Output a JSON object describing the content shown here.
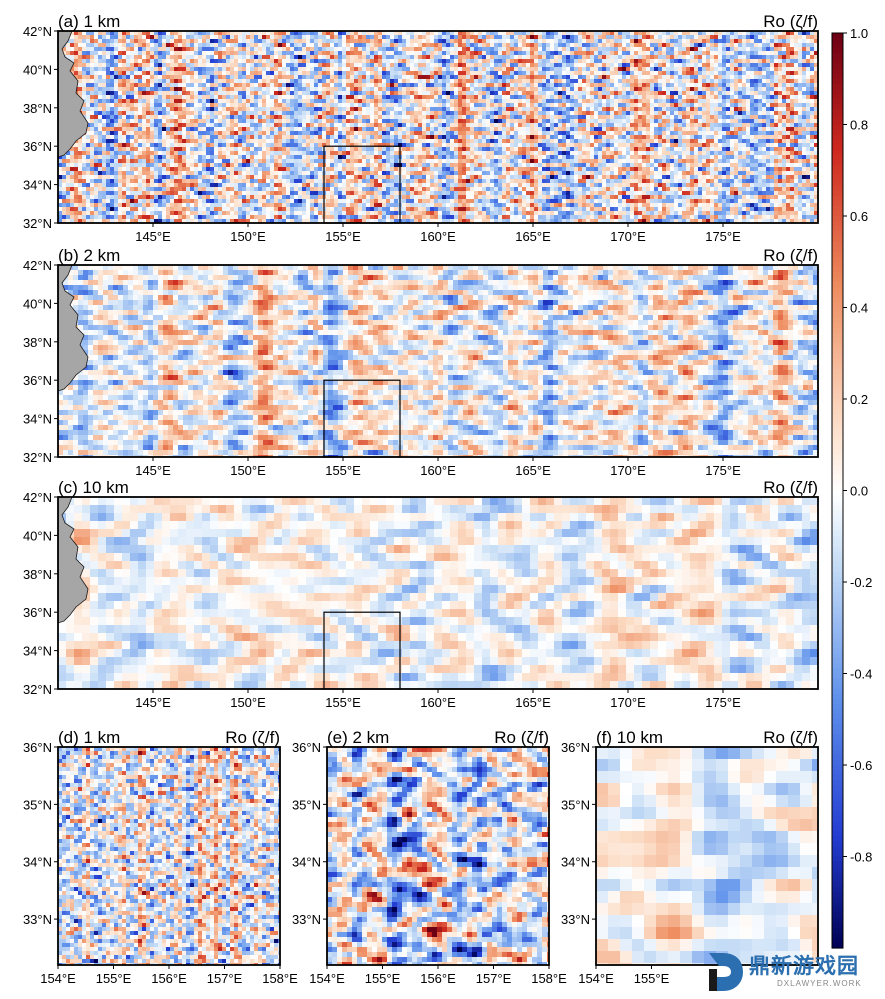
{
  "chart_data": {
    "type": "heatmap",
    "colorbar": {
      "ticks": [
        "1.0",
        "0.8",
        "0.6",
        "0.4",
        "0.2",
        "0.0",
        "-0.2",
        "-0.4",
        "-0.6",
        "-0.8"
      ],
      "tick_values": [
        1.0,
        0.8,
        0.6,
        0.4,
        0.2,
        0.0,
        -0.2,
        -0.4,
        -0.6,
        -0.8
      ],
      "range": [
        -1.0,
        1.0
      ],
      "colormap": "seismic"
    },
    "panels": [
      {
        "id": "a",
        "title": "(a) 1 km",
        "label": "Ro (ζ/f)",
        "resolution_km": 1,
        "amp": 0.95,
        "highlight_box": [
          154,
          158,
          32,
          36
        ],
        "xlim": [
          140,
          180
        ],
        "ylim": [
          32,
          42
        ],
        "xticks": [
          145,
          150,
          155,
          160,
          165,
          170,
          175
        ],
        "yticks": [
          32,
          34,
          36,
          38,
          40,
          42
        ],
        "xticklabels": [
          "145°E",
          "150°E",
          "155°E",
          "160°E",
          "165°E",
          "170°E",
          "175°E"
        ],
        "yticklabels": [
          "32°N",
          "34°N",
          "36°N",
          "38°N",
          "40°N",
          "42°N"
        ]
      },
      {
        "id": "b",
        "title": "(b) 2 km",
        "label": "Ro (ζ/f)",
        "resolution_km": 2,
        "amp": 0.65,
        "highlight_box": [
          154,
          158,
          32,
          36
        ],
        "xlim": [
          140,
          180
        ],
        "ylim": [
          32,
          42
        ],
        "xticks": [
          145,
          150,
          155,
          160,
          165,
          170,
          175
        ],
        "yticks": [
          32,
          34,
          36,
          38,
          40,
          42
        ],
        "xticklabels": [
          "145°E",
          "150°E",
          "155°E",
          "160°E",
          "165°E",
          "170°E",
          "175°E"
        ],
        "yticklabels": [
          "32°N",
          "34°N",
          "36°N",
          "38°N",
          "40°N",
          "42°N"
        ]
      },
      {
        "id": "c",
        "title": "(c) 10 km",
        "label": "Ro (ζ/f)",
        "resolution_km": 10,
        "amp": 0.32,
        "highlight_box": [
          154,
          158,
          32,
          36
        ],
        "xlim": [
          140,
          180
        ],
        "ylim": [
          32,
          42
        ],
        "xticks": [
          145,
          150,
          155,
          160,
          165,
          170,
          175
        ],
        "yticks": [
          32,
          34,
          36,
          38,
          40,
          42
        ],
        "xticklabels": [
          "145°E",
          "150°E",
          "155°E",
          "160°E",
          "165°E",
          "170°E",
          "175°E"
        ],
        "yticklabels": [
          "32°N",
          "34°N",
          "36°N",
          "38°N",
          "40°N",
          "42°N"
        ]
      },
      {
        "id": "d",
        "title": "(d) 1 km",
        "label": "Ro (ζ/f)",
        "resolution_km": 1,
        "amp": 1.0,
        "xlim": [
          154,
          158
        ],
        "ylim": [
          32.2,
          36
        ],
        "xticks": [
          154,
          155,
          156,
          157,
          158
        ],
        "yticks": [
          33,
          34,
          35,
          36
        ],
        "xticklabels": [
          "154°E",
          "155°E",
          "156°E",
          "157°E",
          "158°E"
        ],
        "yticklabels": [
          "33°N",
          "34°N",
          "35°N",
          "36°N"
        ]
      },
      {
        "id": "e",
        "title": "(e) 2 km",
        "label": "Ro (ζ/f)",
        "resolution_km": 2,
        "amp": 0.9,
        "xlim": [
          154,
          158
        ],
        "ylim": [
          32.2,
          36
        ],
        "xticks": [
          154,
          155,
          156,
          157,
          158
        ],
        "yticks": [
          33,
          34,
          35,
          36
        ],
        "xticklabels": [
          "154°E",
          "155°E",
          "156°E",
          "157°E",
          "158°E"
        ],
        "yticklabels": [
          "33°N",
          "34°N",
          "35°N",
          "36°N"
        ]
      },
      {
        "id": "f",
        "title": "(f) 10 km",
        "label": "Ro (ζ/f)",
        "resolution_km": 10,
        "amp": 0.35,
        "xlim": [
          154,
          158
        ],
        "ylim": [
          32.2,
          36
        ],
        "xticks": [
          154,
          155
        ],
        "yticks": [
          33,
          34,
          35,
          36
        ],
        "xticklabels": [
          "154°E",
          "155°E"
        ],
        "yticklabels": [
          "33°N",
          "34°N",
          "35°N",
          "36°N"
        ]
      }
    ]
  },
  "watermark": {
    "title": "鼎新游戏园",
    "subtitle": "DXLAWYER.WORK",
    "color": "#2c6fb0"
  }
}
